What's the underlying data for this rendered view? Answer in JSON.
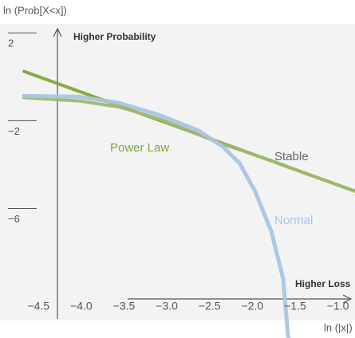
{
  "chart_data": {
    "type": "line",
    "ylabel": "ln (Prob[X<x])",
    "xlabel": "ln (|x|)",
    "annotations": [
      "Higher Probability",
      "Higher Loss"
    ],
    "x": [
      -4.67,
      -4.02,
      -3.55,
      -3.08,
      -2.62,
      -2.34,
      -2.15,
      -1.97,
      -1.78,
      -1.64,
      -1.58,
      -0.8
    ],
    "series": [
      {
        "name": "Power Law",
        "color": "#7ea83c",
        "values": [
          0.25,
          -0.67,
          -1.33,
          -1.99,
          -2.64,
          -3.04,
          -3.3,
          -3.56,
          -3.82,
          -4.02,
          -4.11,
          -5.21
        ]
      },
      {
        "name": "Stable",
        "color": "#9fb86e",
        "values": [
          -0.95,
          -1.1,
          -1.38,
          -1.93,
          -2.65,
          -3.08,
          -3.32,
          -3.57,
          -3.83,
          -4.03,
          -4.12,
          -5.21
        ]
      },
      {
        "name": "Normal",
        "color": "#aac4e2",
        "values": [
          -0.87,
          -0.91,
          -1.2,
          -1.75,
          -2.47,
          -3.2,
          -3.93,
          -5.2,
          -7.02,
          -9.2,
          -11.9,
          null
        ]
      }
    ],
    "xlim": [
      -4.95,
      -0.8
    ],
    "ylim": [
      -11.9,
      3.5
    ],
    "xticks": [
      {
        "value": -4.5,
        "label": "−4.5"
      },
      {
        "value": -4.0,
        "label": "−4.0"
      },
      {
        "value": -3.5,
        "label": "−3.5"
      },
      {
        "value": -3.0,
        "label": "−3.0"
      },
      {
        "value": -2.5,
        "label": "−2.5"
      },
      {
        "value": -2.0,
        "label": "−2.0"
      },
      {
        "value": -1.5,
        "label": "−1.5"
      },
      {
        "value": -1.0,
        "label": "−1.0"
      }
    ],
    "yticks": [
      2,
      {
        "value": -2,
        "label": "−2"
      },
      {
        "value": -6,
        "label": "−6"
      }
    ]
  }
}
